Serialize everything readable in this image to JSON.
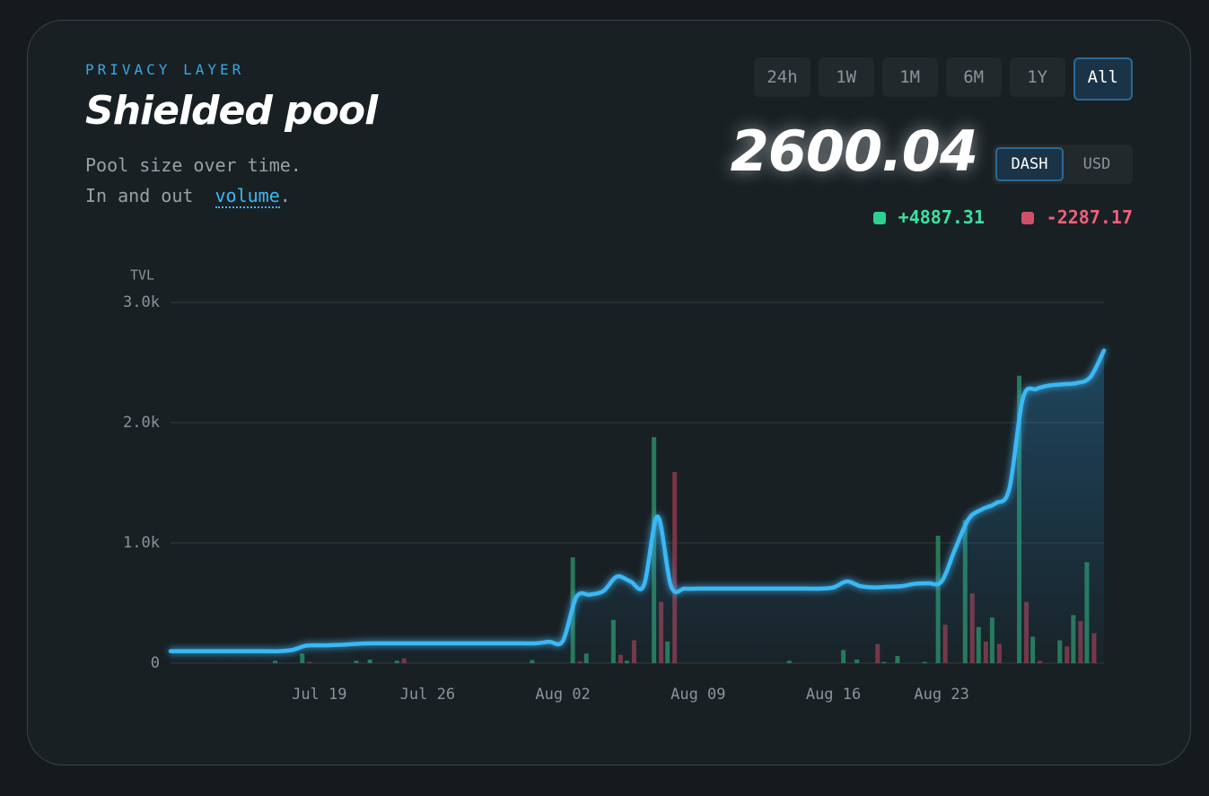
{
  "header": {
    "eyebrow": "PRIVACY LAYER",
    "title": "Shielded pool",
    "line1": "Pool size over time.",
    "line2": "In and out",
    "link": "volume",
    "period": "."
  },
  "ranges": [
    "24h",
    "1W",
    "1M",
    "6M",
    "1Y",
    "All"
  ],
  "units": [
    "DASH",
    "USD"
  ],
  "stats": {
    "total": "2600.04",
    "inflow": "+4887.31",
    "outflow": "-2287.17"
  },
  "chart_data": {
    "type": "line-bar",
    "y_label": "TVL",
    "grid": true,
    "ylim": [
      0,
      3000
    ],
    "yticks": [
      0,
      {
        "value": 1000,
        "label": "1.0k"
      },
      {
        "value": 2000,
        "label": "2.0k"
      },
      {
        "value": 3000,
        "label": "3.0k"
      }
    ],
    "categories": [
      null,
      null,
      null,
      null,
      null,
      null,
      null,
      null,
      null,
      null,
      null,
      "Jul 19",
      null,
      null,
      null,
      null,
      null,
      null,
      null,
      "Jul 26",
      null,
      null,
      null,
      null,
      null,
      null,
      null,
      null,
      null,
      "Aug 02",
      null,
      null,
      null,
      null,
      null,
      null,
      null,
      null,
      null,
      "Aug 09",
      null,
      null,
      null,
      null,
      null,
      null,
      null,
      null,
      null,
      "Aug 16",
      null,
      null,
      null,
      null,
      null,
      null,
      null,
      "Aug 23",
      null,
      null,
      null,
      null,
      null,
      null,
      null,
      null,
      null,
      null,
      null,
      null
    ],
    "series": [
      {
        "kind": "line",
        "color": "#3bb8f5",
        "values": [
          100,
          100,
          100,
          100,
          100,
          100,
          100,
          100,
          100,
          110,
          145,
          148,
          150,
          155,
          162,
          165,
          165,
          165,
          165,
          165,
          165,
          165,
          165,
          165,
          165,
          165,
          165,
          165,
          178,
          185,
          550,
          570,
          600,
          720,
          680,
          650,
          1220,
          640,
          620,
          620,
          620,
          620,
          620,
          620,
          620,
          620,
          620,
          620,
          620,
          630,
          680,
          640,
          630,
          635,
          640,
          660,
          665,
          680,
          950,
          1200,
          1280,
          1330,
          1450,
          2200,
          2280,
          2310,
          2320,
          2330,
          2380,
          2600
        ]
      },
      {
        "kind": "bar",
        "color": "#2a8a63",
        "values": [
          null,
          null,
          null,
          null,
          null,
          null,
          null,
          null,
          20,
          null,
          80,
          null,
          null,
          null,
          20,
          30,
          null,
          20,
          null,
          null,
          null,
          null,
          null,
          null,
          null,
          null,
          null,
          25,
          null,
          null,
          880,
          80,
          null,
          360,
          20,
          null,
          1880,
          180,
          null,
          null,
          null,
          null,
          null,
          null,
          null,
          null,
          20,
          null,
          null,
          null,
          110,
          30,
          null,
          10,
          60,
          null,
          10,
          1060,
          null,
          1190,
          300,
          380,
          null,
          2390,
          220,
          null,
          190,
          400,
          840,
          null
        ]
      },
      {
        "kind": "bar",
        "color": "#8a3a4a",
        "values": [
          null,
          null,
          null,
          null,
          null,
          null,
          null,
          null,
          null,
          null,
          10,
          null,
          null,
          null,
          null,
          null,
          null,
          40,
          null,
          null,
          null,
          null,
          null,
          null,
          null,
          null,
          null,
          null,
          null,
          null,
          15,
          null,
          null,
          70,
          190,
          null,
          510,
          1590,
          null,
          null,
          null,
          null,
          null,
          null,
          null,
          null,
          null,
          null,
          null,
          null,
          null,
          null,
          160,
          null,
          null,
          null,
          null,
          320,
          null,
          580,
          180,
          160,
          null,
          510,
          20,
          null,
          140,
          350,
          250,
          null
        ]
      }
    ]
  }
}
